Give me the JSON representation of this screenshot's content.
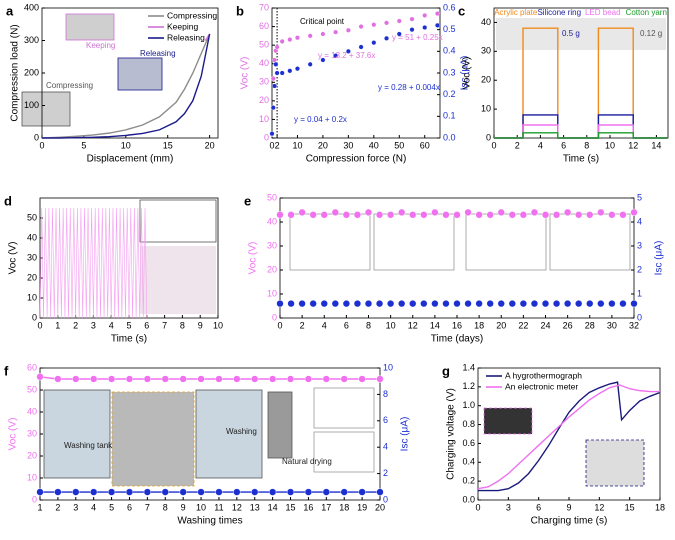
{
  "chart_data": [
    {
      "type": "line",
      "panel": "a",
      "xlabel": "Displacement (mm)",
      "ylabel": "Compression load (N)",
      "xlim": [
        0,
        21
      ],
      "ylim": [
        0,
        400
      ],
      "xticks": [
        0,
        5,
        10,
        15,
        20
      ],
      "yticks": [
        0,
        100,
        200,
        300,
        400
      ],
      "legend": "upper right",
      "series": [
        {
          "name": "Compressing",
          "color": "#8c8c8c",
          "style": "line",
          "x": [
            0,
            2,
            4,
            6,
            8,
            10,
            12,
            14,
            16,
            17,
            18,
            19,
            20
          ],
          "values": [
            0,
            2,
            5,
            9,
            15,
            25,
            40,
            65,
            110,
            150,
            200,
            260,
            320
          ]
        },
        {
          "name": "Keeping",
          "color": "#d070d8",
          "style": "line",
          "x": [
            19.5,
            20
          ],
          "values": [
            300,
            320
          ]
        },
        {
          "name": "Releasing",
          "color": "#1a1a8c",
          "style": "line",
          "x": [
            0,
            2,
            4,
            6,
            8,
            10,
            12,
            14,
            16,
            17,
            18,
            19,
            20
          ],
          "values": [
            0,
            0,
            1,
            2,
            4,
            8,
            14,
            25,
            50,
            75,
            115,
            190,
            320
          ]
        }
      ],
      "annotations": [
        "Compressing",
        "Keeping",
        "Releasing"
      ]
    },
    {
      "type": "scatter",
      "panel": "b",
      "xlabel": "Compression force (N)",
      "ylabel": "Voc (V)",
      "y2label": "Isc (μA)",
      "xlim": [
        0,
        66
      ],
      "ylim": [
        0,
        70
      ],
      "y2lim": [
        0,
        0.6
      ],
      "xticks": [
        0,
        2,
        10,
        20,
        30,
        40,
        50,
        60
      ],
      "yticks": [
        0,
        10,
        20,
        30,
        40,
        50,
        60,
        70
      ],
      "y2ticks": [
        {
          "value": 0,
          "label": "0.0"
        },
        0.1,
        0.2,
        0.3,
        0.4,
        0.5,
        0.6
      ],
      "series": [
        {
          "name": "Voc",
          "color": "#e070e0",
          "style": "markers",
          "x": [
            0,
            0.5,
            1,
            1.5,
            2,
            4,
            7,
            10,
            15,
            20,
            25,
            30,
            35,
            40,
            45,
            50,
            55,
            60,
            65
          ],
          "values": [
            2,
            32,
            42,
            47,
            49,
            52,
            53,
            54,
            55,
            56,
            57,
            58,
            60,
            61,
            62,
            63,
            64,
            66,
            67
          ]
        },
        {
          "name": "Isc",
          "color": "#1c2fd0",
          "style": "markers",
          "axis": "y2",
          "x": [
            0,
            0.5,
            1,
            1.5,
            2,
            4,
            7,
            10,
            15,
            20,
            25,
            30,
            35,
            40,
            45,
            50,
            55,
            60,
            65
          ],
          "values": [
            0.02,
            0.14,
            0.24,
            0.34,
            0.3,
            0.3,
            0.31,
            0.32,
            0.34,
            0.36,
            0.38,
            0.4,
            0.42,
            0.44,
            0.46,
            0.48,
            0.5,
            0.51,
            0.52
          ]
        }
      ],
      "annotations": [
        "Critical point",
        "y = 51 + 0.25x",
        "y = 13.2 + 37.6x",
        "y = 0.28 + 0.004x",
        "y = 0.04 + 0.2x"
      ]
    },
    {
      "type": "line",
      "panel": "c",
      "xlabel": "Time (s)",
      "ylabel": "Voc (V)",
      "xlim": [
        0,
        15
      ],
      "ylim": [
        0,
        45
      ],
      "xticks": [
        0,
        2,
        4,
        6,
        8,
        10,
        12,
        14
      ],
      "yticks": [
        0,
        10,
        20,
        30,
        40
      ],
      "legend": "top",
      "series": [
        {
          "name": "Acrylic plate",
          "color": "#f08a1c",
          "style": "line",
          "x": [
            0,
            2.5,
            2.5,
            5.5,
            5.5,
            9,
            9,
            12,
            12,
            15
          ],
          "values": [
            0,
            0,
            38,
            38,
            0,
            0,
            38,
            38,
            0,
            0
          ]
        },
        {
          "name": "Silicone ring",
          "color": "#1a1a9c",
          "style": "line",
          "x": [
            0,
            2.5,
            2.5,
            5.5,
            5.5,
            9,
            9,
            12,
            12,
            15
          ],
          "values": [
            0,
            0,
            8,
            8,
            0,
            0,
            8,
            8,
            0,
            0
          ]
        },
        {
          "name": "LED bead",
          "color": "#f070f0",
          "style": "line",
          "x": [
            0,
            2.5,
            2.5,
            5.5,
            5.5,
            9,
            9,
            12,
            12,
            15
          ],
          "values": [
            0,
            0,
            4.5,
            4.5,
            0,
            0,
            4.5,
            4.5,
            0,
            0
          ]
        },
        {
          "name": "Cotton yarn",
          "color": "#1a9c2a",
          "style": "line",
          "x": [
            0,
            2.5,
            2.5,
            5.5,
            5.5,
            9,
            9,
            12,
            12,
            15
          ],
          "values": [
            0,
            0,
            1.8,
            1.8,
            0,
            0,
            1.8,
            1.8,
            0,
            0
          ]
        }
      ],
      "annotations": [
        "0.5 g",
        "0.12 g"
      ]
    },
    {
      "type": "line",
      "panel": "d",
      "xlabel": "Time (s)",
      "ylabel": "Voc (V)",
      "xlim": [
        0,
        10
      ],
      "ylim": [
        0,
        60
      ],
      "xticks": [
        0,
        1,
        2,
        3,
        4,
        5,
        6,
        7,
        8,
        9,
        10
      ],
      "yticks": [
        0,
        10,
        20,
        30,
        40,
        50
      ],
      "series": [
        {
          "name": "Voc",
          "color": "#f4a0f0",
          "style": "line",
          "x": [
            0,
            0.1,
            0.2,
            0.3,
            0.4,
            0.5,
            0.6,
            0.7,
            0.8,
            0.9,
            1,
            1.1,
            1.2,
            1.3,
            1.4,
            1.5,
            1.6,
            1.7,
            1.8,
            1.9,
            2,
            2.1,
            2.2,
            2.3,
            2.4,
            2.5,
            2.6,
            2.7,
            2.8,
            2.9,
            3,
            3.1,
            3.2,
            3.3,
            3.4,
            3.5,
            3.6,
            3.7,
            3.8,
            3.9,
            4,
            4.1,
            4.2,
            4.3,
            4.4,
            4.5,
            4.6,
            4.7,
            4.8,
            4.9,
            5,
            5.1,
            5.2,
            5.3,
            5.4,
            5.5,
            5.6,
            5.7,
            5.8,
            5.9,
            6
          ],
          "values": [
            0,
            55,
            0,
            55,
            0,
            55,
            0,
            55,
            0,
            55,
            0,
            55,
            0,
            55,
            0,
            55,
            0,
            55,
            0,
            55,
            0,
            55,
            0,
            55,
            0,
            55,
            0,
            55,
            0,
            55,
            0,
            55,
            0,
            55,
            0,
            55,
            0,
            55,
            0,
            55,
            0,
            55,
            0,
            55,
            0,
            55,
            0,
            55,
            0,
            55,
            0,
            55,
            0,
            55,
            0,
            55,
            0,
            55,
            0,
            55,
            0
          ]
        }
      ],
      "annotations": []
    },
    {
      "type": "scatter",
      "panel": "e",
      "xlabel": "Time (days)",
      "ylabel": "Voc (V)",
      "y2label": "Isc (μA)",
      "xlim": [
        0,
        32
      ],
      "ylim": [
        0,
        50
      ],
      "y2lim": [
        0,
        5
      ],
      "xticks": [
        0,
        2,
        4,
        6,
        8,
        10,
        12,
        14,
        16,
        18,
        20,
        22,
        24,
        26,
        28,
        30,
        32
      ],
      "yticks": [
        0,
        10,
        20,
        30,
        40,
        50
      ],
      "y2ticks": [
        0,
        1,
        2,
        3,
        4,
        5
      ],
      "series": [
        {
          "name": "Voc",
          "color": "#f070f0",
          "style": "markers",
          "x": [
            0,
            1,
            2,
            3,
            4,
            5,
            6,
            7,
            8,
            9,
            10,
            11,
            12,
            13,
            14,
            15,
            16,
            17,
            18,
            19,
            20,
            21,
            22,
            23,
            24,
            25,
            26,
            27,
            28,
            29,
            30,
            31,
            32
          ],
          "values": [
            43,
            43,
            44,
            43,
            43,
            44,
            43,
            43,
            44,
            43,
            43,
            44,
            43,
            43,
            44,
            43,
            43,
            44,
            43,
            43,
            44,
            43,
            43,
            44,
            43,
            43,
            44,
            43,
            43,
            44,
            43,
            43,
            44
          ]
        },
        {
          "name": "Isc",
          "color": "#1c2fd0",
          "style": "markers",
          "axis": "y2",
          "x": [
            0,
            1,
            2,
            3,
            4,
            5,
            6,
            7,
            8,
            9,
            10,
            11,
            12,
            13,
            14,
            15,
            16,
            17,
            18,
            19,
            20,
            21,
            22,
            23,
            24,
            25,
            26,
            27,
            28,
            29,
            30,
            31,
            32
          ],
          "values": [
            0.6,
            0.6,
            0.6,
            0.6,
            0.6,
            0.6,
            0.6,
            0.6,
            0.6,
            0.6,
            0.6,
            0.6,
            0.6,
            0.6,
            0.6,
            0.6,
            0.6,
            0.6,
            0.6,
            0.6,
            0.6,
            0.6,
            0.6,
            0.6,
            0.6,
            0.6,
            0.6,
            0.6,
            0.6,
            0.6,
            0.6,
            0.6,
            0.6
          ]
        }
      ],
      "annotations": []
    },
    {
      "type": "scatter",
      "panel": "f",
      "xlabel": "Washing times",
      "ylabel": "Voc (V)",
      "y2label": "Isc (μA)",
      "xlim": [
        1,
        20
      ],
      "ylim": [
        0,
        60
      ],
      "y2lim": [
        0,
        10
      ],
      "xticks": [
        1,
        2,
        3,
        4,
        5,
        6,
        7,
        8,
        9,
        10,
        11,
        12,
        13,
        14,
        15,
        16,
        17,
        18,
        19,
        20
      ],
      "yticks": [
        0,
        10,
        20,
        30,
        40,
        50,
        60
      ],
      "y2ticks": [
        0,
        2,
        4,
        6,
        8,
        10
      ],
      "series": [
        {
          "name": "Voc",
          "color": "#f070f0",
          "style": "line-markers",
          "x": [
            1,
            2,
            3,
            4,
            5,
            6,
            7,
            8,
            9,
            10,
            11,
            12,
            13,
            14,
            15,
            16,
            17,
            18,
            19,
            20
          ],
          "values": [
            56,
            55,
            55,
            55,
            55,
            55,
            55,
            55,
            55,
            55,
            55,
            55,
            55,
            55,
            55,
            55,
            55,
            55,
            55,
            55
          ]
        },
        {
          "name": "Isc",
          "color": "#1c2fd0",
          "style": "line-markers",
          "axis": "y2",
          "x": [
            1,
            2,
            3,
            4,
            5,
            6,
            7,
            8,
            9,
            10,
            11,
            12,
            13,
            14,
            15,
            16,
            17,
            18,
            19,
            20
          ],
          "values": [
            0.6,
            0.6,
            0.6,
            0.6,
            0.6,
            0.6,
            0.6,
            0.6,
            0.6,
            0.6,
            0.6,
            0.6,
            0.6,
            0.6,
            0.6,
            0.6,
            0.6,
            0.6,
            0.6,
            0.6
          ]
        }
      ],
      "annotations": [
        "Washing tank",
        "Washing",
        "Natural drying"
      ]
    },
    {
      "type": "line",
      "panel": "g",
      "xlabel": "Charging time (s)",
      "ylabel": "Charging voltage (V)",
      "xlim": [
        0,
        18
      ],
      "ylim": [
        0,
        1.4
      ],
      "xticks": [
        0,
        3,
        6,
        9,
        12,
        15,
        18
      ],
      "yticks": [
        {
          "value": 0,
          "label": "0.0"
        },
        0.2,
        0.4,
        0.6,
        0.8,
        {
          "value": 1,
          "label": "1.0"
        },
        1.2,
        1.4
      ],
      "legend": "upper left",
      "series": [
        {
          "name": "A hygrothermograph",
          "color": "#1a1a7c",
          "style": "line",
          "x": [
            0,
            1,
            2,
            3,
            4,
            5,
            6,
            7,
            8,
            9,
            10,
            11,
            12,
            13,
            13.8,
            14.2,
            15,
            16,
            17,
            18
          ],
          "values": [
            0.1,
            0.1,
            0.1,
            0.12,
            0.18,
            0.28,
            0.42,
            0.58,
            0.76,
            0.93,
            1.05,
            1.14,
            1.19,
            1.23,
            1.25,
            0.85,
            0.95,
            1.05,
            1.1,
            1.14
          ]
        },
        {
          "name": "An electronic meter",
          "color": "#f070f0",
          "style": "line",
          "x": [
            0,
            1,
            2,
            3,
            4,
            5,
            6,
            7,
            8,
            9,
            10,
            11,
            12,
            13,
            14,
            15,
            16,
            17,
            18
          ],
          "values": [
            0.12,
            0.14,
            0.2,
            0.28,
            0.38,
            0.48,
            0.58,
            0.68,
            0.78,
            0.88,
            0.97,
            1.06,
            1.13,
            1.19,
            1.22,
            1.18,
            1.16,
            1.15,
            1.15
          ]
        }
      ],
      "annotations": []
    }
  ]
}
